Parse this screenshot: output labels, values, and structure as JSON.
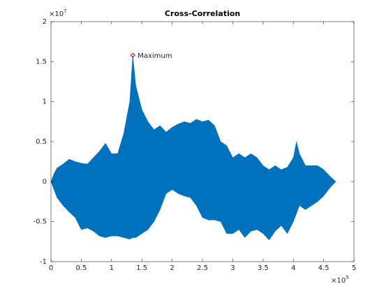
{
  "chart_data": {
    "type": "area",
    "title": "Cross-Correlation",
    "x_exponent_base": "×10",
    "x_exponent": "5",
    "y_exponent_base": "×10",
    "y_exponent": "7",
    "xlim": [
      0,
      5
    ],
    "ylim": [
      -1,
      2
    ],
    "xticks": [
      0,
      0.5,
      1,
      1.5,
      2,
      2.5,
      3,
      3.5,
      4,
      4.5,
      5
    ],
    "yticks": [
      -1,
      -0.5,
      0,
      0.5,
      1,
      1.5,
      2
    ],
    "grid": false,
    "x": [
      0,
      0.05,
      0.1,
      0.2,
      0.3,
      0.4,
      0.5,
      0.6,
      0.7,
      0.8,
      0.9,
      1.0,
      1.1,
      1.2,
      1.3,
      1.35,
      1.4,
      1.5,
      1.6,
      1.7,
      1.8,
      1.9,
      2.0,
      2.1,
      2.2,
      2.3,
      2.4,
      2.5,
      2.6,
      2.7,
      2.8,
      2.9,
      3.0,
      3.1,
      3.2,
      3.3,
      3.4,
      3.5,
      3.6,
      3.7,
      3.8,
      3.9,
      4.0,
      4.05,
      4.1,
      4.2,
      4.3,
      4.4,
      4.5,
      4.6,
      4.7
    ],
    "series": [
      {
        "color": "#0072bd",
        "values": [
          0,
          0.1,
          0.17,
          0.22,
          0.28,
          0.25,
          0.23,
          0.22,
          0.3,
          0.38,
          0.48,
          0.35,
          0.35,
          0.6,
          1.0,
          1.58,
          1.2,
          0.9,
          0.75,
          0.65,
          0.7,
          0.62,
          0.68,
          0.72,
          0.75,
          0.73,
          0.78,
          0.75,
          0.77,
          0.7,
          0.5,
          0.45,
          0.3,
          0.35,
          0.3,
          0.35,
          0.3,
          0.2,
          0.15,
          0.2,
          0.15,
          0.18,
          0.3,
          0.5,
          0.35,
          0.2,
          0.2,
          0.2,
          0.15,
          0.07,
          0
        ]
      },
      {
        "color": "#0072bd",
        "values": [
          0,
          -0.1,
          -0.2,
          -0.3,
          -0.38,
          -0.45,
          -0.6,
          -0.58,
          -0.62,
          -0.68,
          -0.7,
          -0.68,
          -0.68,
          -0.7,
          -0.72,
          -0.7,
          -0.7,
          -0.65,
          -0.6,
          -0.5,
          -0.35,
          -0.15,
          -0.1,
          -0.15,
          -0.18,
          -0.2,
          -0.3,
          -0.45,
          -0.48,
          -0.48,
          -0.5,
          -0.65,
          -0.65,
          -0.6,
          -0.7,
          -0.62,
          -0.6,
          -0.65,
          -0.73,
          -0.62,
          -0.55,
          -0.65,
          -0.5,
          -0.4,
          -0.3,
          -0.35,
          -0.3,
          -0.25,
          -0.18,
          -0.08,
          0
        ]
      }
    ],
    "annotation": {
      "text": "Maximum",
      "x": 1.35,
      "y": 1.58,
      "color": "#cc0000"
    }
  }
}
